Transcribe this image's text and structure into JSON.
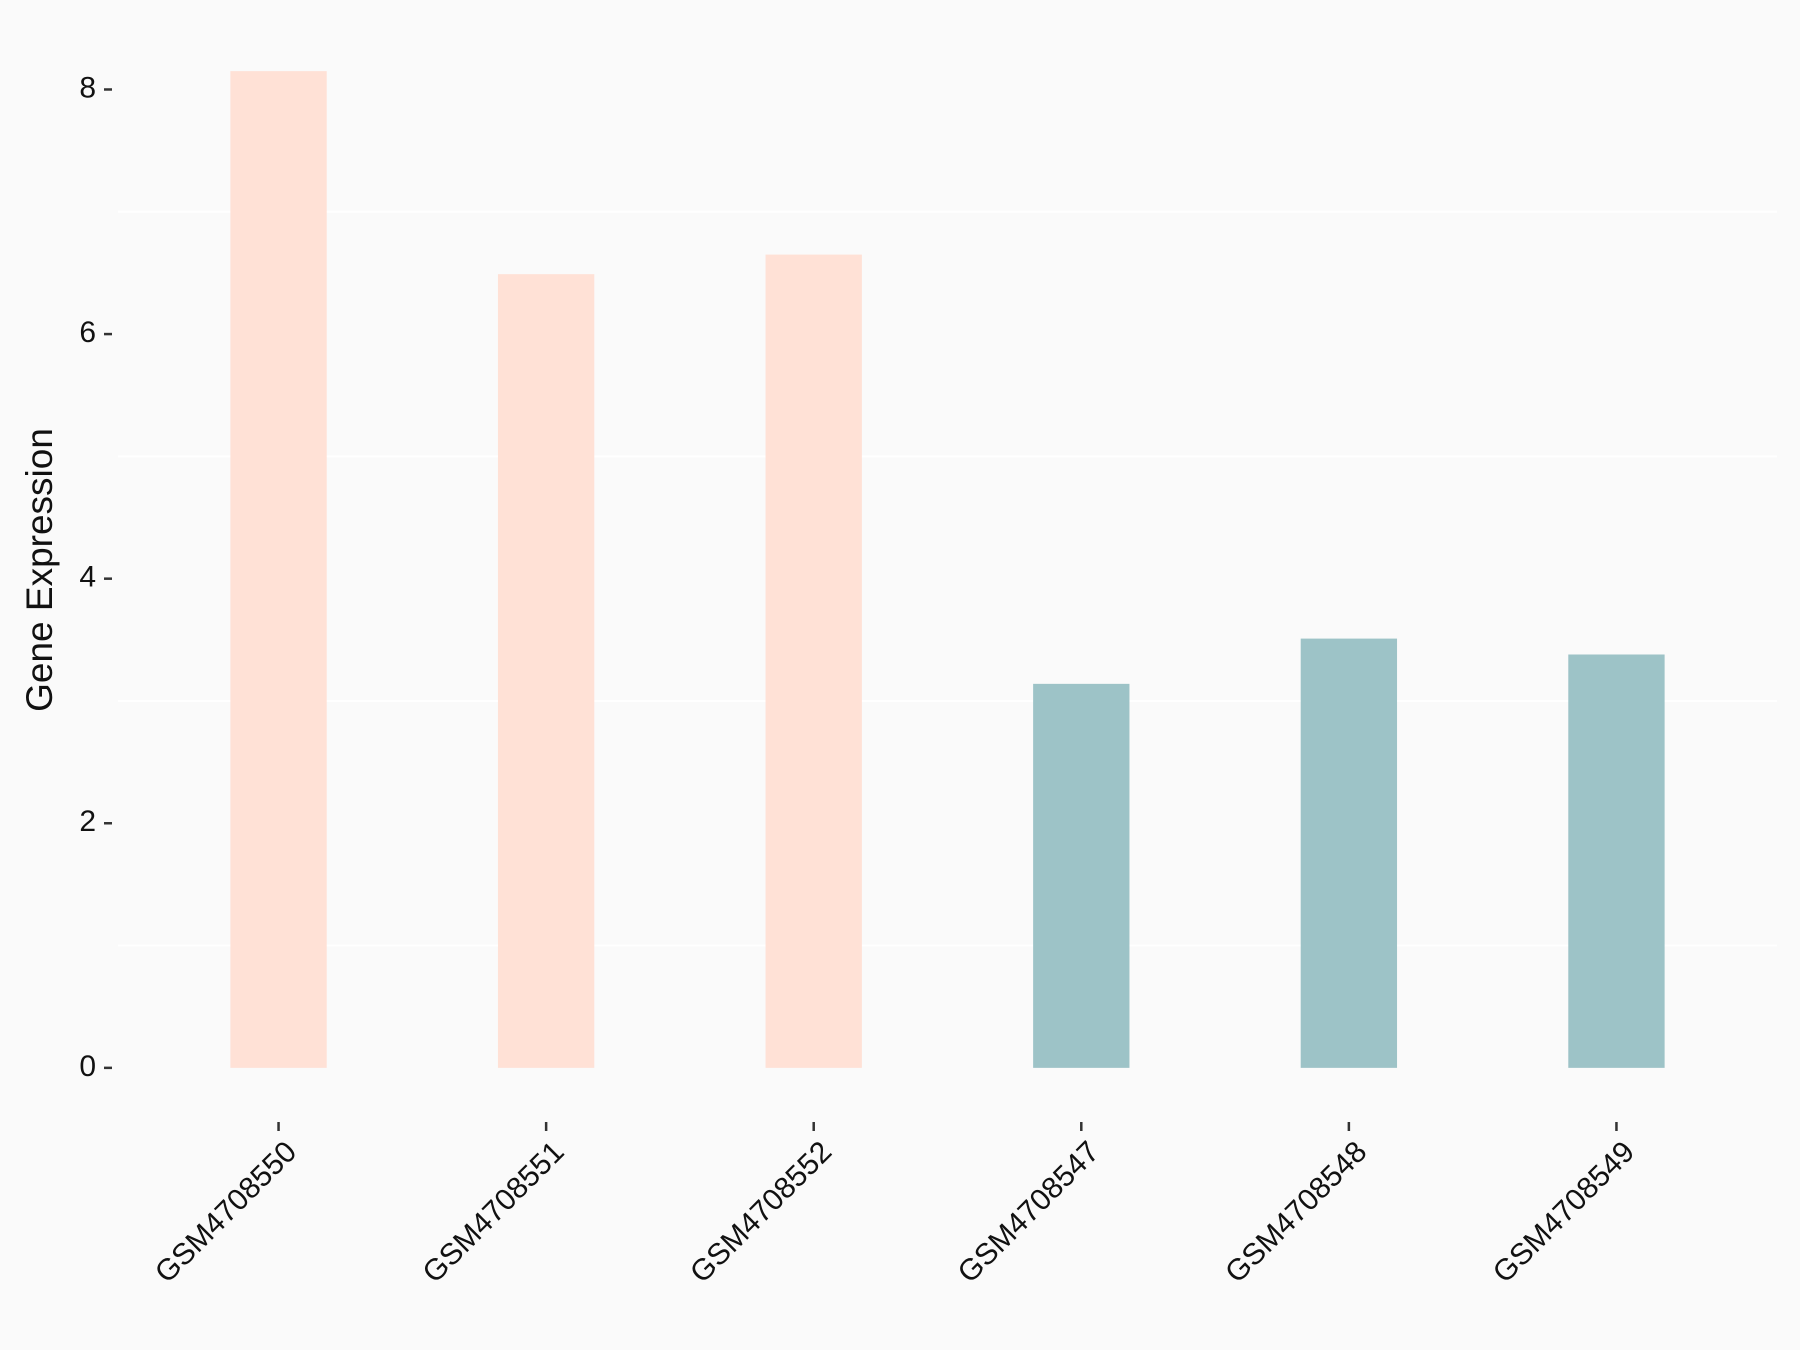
{
  "chart_data": {
    "type": "bar",
    "y_label": "Gene Expression",
    "categories": [
      "GSM4708550",
      "GSM4708551",
      "GSM4708552",
      "GSM4708547",
      "GSM4708548",
      "GSM4708549"
    ],
    "values": [
      8.15,
      6.49,
      6.65,
      3.14,
      3.51,
      3.38
    ],
    "colors": [
      "#ffe1d6",
      "#ffe1d6",
      "#ffe1d6",
      "#9dc3c7",
      "#9dc3c7",
      "#9dc3c7"
    ],
    "ylim": [
      -0.41,
      8.56
    ],
    "yticks": [
      0,
      2,
      4,
      6,
      8
    ],
    "grid": true
  }
}
